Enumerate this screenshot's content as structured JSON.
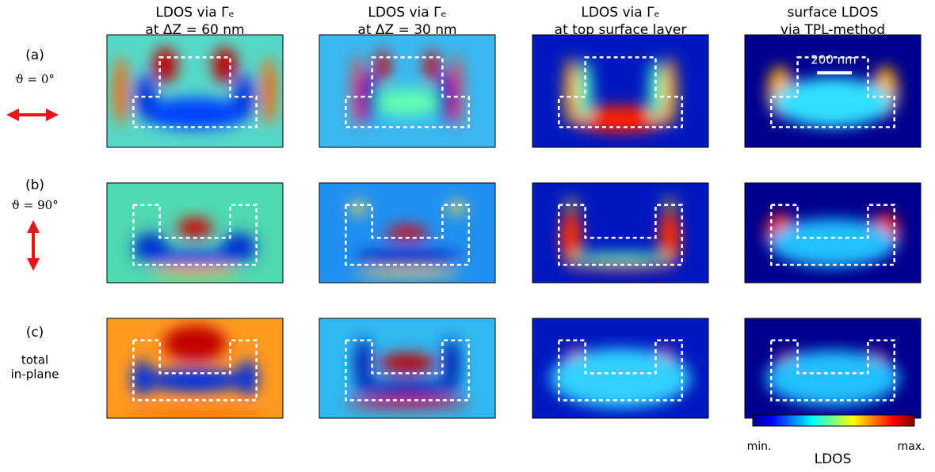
{
  "columns": [
    {
      "line1": "LDOS via Γₑ",
      "line2": "at ΔZ = 60 nm"
    },
    {
      "line1": "LDOS via Γₑ",
      "line2": "at ΔZ = 30 nm"
    },
    {
      "line1": "LDOS via Γₑ",
      "line2": "at top surface layer"
    },
    {
      "line1": "surface LDOS",
      "line2": "via TPL-method"
    }
  ],
  "rows": [
    {
      "label": "(a)",
      "line1": "ϑ = 0°"
    },
    {
      "label": "(b)",
      "line1": "ϑ = 90°"
    },
    {
      "label": "(c)",
      "line1": "total",
      "line2": "in-plane"
    }
  ],
  "scale_bar": "200 nm",
  "colorbar": {
    "min": "min.",
    "max": "max.",
    "label": "LDOS"
  }
}
